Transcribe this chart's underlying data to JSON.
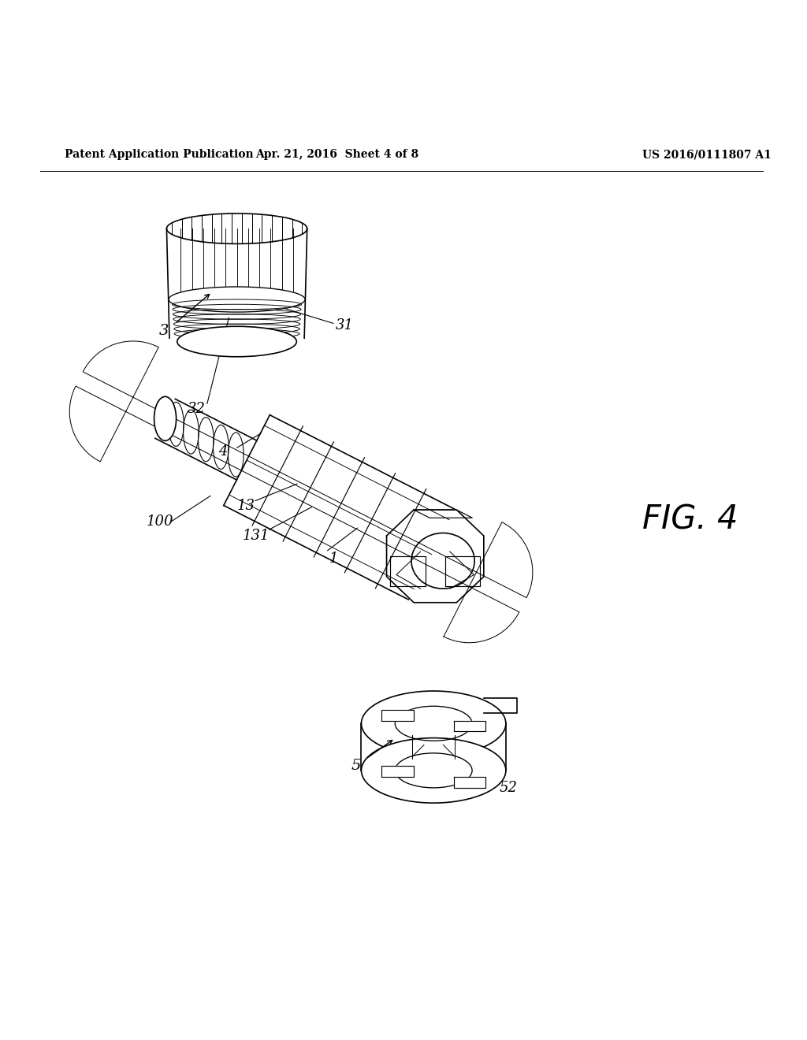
{
  "title_left": "Patent Application Publication",
  "title_mid": "Apr. 21, 2016  Sheet 4 of 8",
  "title_right": "US 2016/0111807 A1",
  "fig_label": "FIG. 4",
  "background_color": "#ffffff",
  "line_color": "#000000",
  "header_fontsize": 10,
  "fig_label_fontsize": 30,
  "label_fontsize": 13
}
